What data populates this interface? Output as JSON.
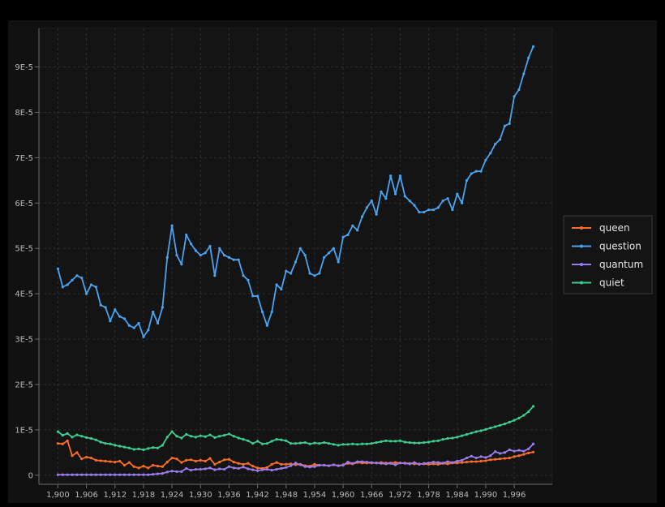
{
  "chart_data": {
    "type": "line",
    "title": "",
    "xlabel": "",
    "ylabel": "",
    "x_start": 1900,
    "x_end": 2000,
    "xlim": [
      1896,
      2004
    ],
    "ylim": [
      -2e-06,
      9.85e-05
    ],
    "x_ticks": [
      1900,
      1906,
      1912,
      1918,
      1924,
      1930,
      1936,
      1942,
      1948,
      1954,
      1960,
      1966,
      1972,
      1978,
      1984,
      1990,
      1996
    ],
    "x_tick_labels": [
      "1,900",
      "1,906",
      "1,912",
      "1,918",
      "1,924",
      "1,930",
      "1,936",
      "1,942",
      "1,948",
      "1,954",
      "1,960",
      "1,966",
      "1,972",
      "1,978",
      "1,984",
      "1,990",
      "1,996"
    ],
    "y_ticks": [
      0,
      1e-05,
      2e-05,
      3e-05,
      4e-05,
      5e-05,
      6e-05,
      7e-05,
      8e-05,
      9e-05
    ],
    "y_tick_labels": [
      "0",
      "1E-5",
      "2E-5",
      "3E-5",
      "4E-5",
      "5E-5",
      "6E-5",
      "7E-5",
      "8E-5",
      "9E-5"
    ],
    "grid": true,
    "legend_position": "right",
    "background": "#111111",
    "series": [
      {
        "name": "queen",
        "color": "#fc6d26",
        "values": [
          7.0,
          6.9,
          7.6,
          4.3,
          5.0,
          3.6,
          4.0,
          3.8,
          3.3,
          3.2,
          3.1,
          3.0,
          2.9,
          3.1,
          2.2,
          2.8,
          1.9,
          1.6,
          2.0,
          1.6,
          2.2,
          2.0,
          1.9,
          2.9,
          3.8,
          3.6,
          2.8,
          3.3,
          3.4,
          3.1,
          3.3,
          3.1,
          3.7,
          2.4,
          2.9,
          3.4,
          3.5,
          2.9,
          2.6,
          2.4,
          2.6,
          2.0,
          1.6,
          1.5,
          1.7,
          2.4,
          2.8,
          2.4,
          2.4,
          2.5,
          2.3,
          2.4,
          2.1,
          2.0,
          2.4,
          2.2,
          2.2,
          2.1,
          2.3,
          2.1,
          2.3,
          2.6,
          2.5,
          2.8,
          2.7,
          2.7,
          2.7,
          2.7,
          2.8,
          2.7,
          2.7,
          2.8,
          2.7,
          2.7,
          2.6,
          2.5,
          2.5,
          2.5,
          2.4,
          2.5,
          2.4,
          2.6,
          2.5,
          2.7,
          2.7,
          2.8,
          2.9,
          3.0,
          3.0,
          3.1,
          3.2,
          3.4,
          3.5,
          3.6,
          3.7,
          3.8,
          4.1,
          4.3,
          4.6,
          4.9,
          5.1
        ]
      },
      {
        "name": "question",
        "color": "#4aa3f0",
        "values": [
          45.5,
          41.5,
          42.0,
          43.0,
          44.0,
          43.5,
          40.0,
          42.0,
          41.5,
          37.5,
          37.0,
          34.0,
          36.5,
          35.0,
          34.5,
          33.0,
          32.5,
          33.5,
          30.5,
          32.0,
          36.0,
          33.5,
          37.0,
          48.0,
          55.0,
          48.5,
          46.5,
          53.0,
          51.0,
          49.5,
          48.5,
          49.0,
          50.5,
          44.0,
          50.0,
          48.5,
          48.0,
          47.5,
          47.5,
          44.0,
          43.0,
          39.5,
          39.5,
          36.0,
          33.0,
          36.0,
          42.0,
          41.0,
          45.0,
          44.5,
          47.0,
          50.0,
          48.5,
          44.5,
          44.0,
          44.5,
          48.0,
          49.0,
          50.0,
          47.0,
          52.5,
          53.0,
          55.0,
          54.0,
          57.0,
          59.0,
          60.5,
          57.5,
          62.5,
          61.0,
          66.0,
          62.0,
          66.0,
          61.5,
          60.5,
          59.5,
          58.0,
          58.0,
          58.5,
          58.5,
          59.0,
          60.5,
          61.0,
          58.5,
          62.0,
          60.0,
          65.0,
          66.5,
          67.0,
          67.0,
          69.5,
          71.0,
          73.0,
          74.0,
          77.0,
          77.5,
          83.5,
          85.0,
          88.5,
          92.0,
          94.5
        ]
      },
      {
        "name": "quantum",
        "color": "#9b7cf0",
        "values": [
          0.1,
          0.1,
          0.1,
          0.1,
          0.1,
          0.1,
          0.1,
          0.1,
          0.1,
          0.1,
          0.1,
          0.1,
          0.1,
          0.1,
          0.1,
          0.1,
          0.1,
          0.1,
          0.1,
          0.1,
          0.2,
          0.3,
          0.4,
          0.7,
          0.9,
          0.8,
          0.8,
          1.5,
          1.1,
          1.3,
          1.3,
          1.4,
          1.6,
          1.2,
          1.4,
          1.3,
          1.9,
          1.6,
          1.5,
          1.8,
          1.4,
          1.2,
          1.0,
          1.2,
          1.3,
          1.1,
          1.3,
          1.5,
          1.7,
          2.1,
          2.7,
          2.3,
          1.9,
          1.8,
          1.9,
          2.2,
          2.2,
          2.1,
          2.3,
          2.1,
          2.2,
          2.9,
          2.6,
          3.0,
          3.0,
          2.9,
          2.8,
          2.7,
          2.6,
          2.5,
          2.6,
          2.3,
          2.7,
          2.6,
          2.5,
          2.8,
          2.4,
          2.6,
          2.7,
          2.9,
          2.8,
          2.7,
          3.0,
          2.8,
          3.1,
          3.3,
          3.8,
          4.2,
          3.8,
          4.1,
          3.9,
          4.3,
          5.2,
          4.8,
          5.0,
          5.6,
          5.3,
          5.5,
          5.3,
          5.8,
          6.9
        ]
      },
      {
        "name": "quiet",
        "color": "#3dcc91",
        "values": [
          9.6,
          8.8,
          9.2,
          8.4,
          8.9,
          8.6,
          8.3,
          8.1,
          7.8,
          7.3,
          7.0,
          6.9,
          6.6,
          6.4,
          6.2,
          6.0,
          5.7,
          5.8,
          5.6,
          5.9,
          6.1,
          6.0,
          6.6,
          8.4,
          9.6,
          8.6,
          8.2,
          9.0,
          8.6,
          8.4,
          8.7,
          8.5,
          8.9,
          8.3,
          8.6,
          8.8,
          9.1,
          8.6,
          8.2,
          7.9,
          7.6,
          7.0,
          7.5,
          6.9,
          7.0,
          7.5,
          7.9,
          7.8,
          7.6,
          7.0,
          7.0,
          7.1,
          7.2,
          6.9,
          7.1,
          7.0,
          7.2,
          7.0,
          6.8,
          6.6,
          6.8,
          6.8,
          6.9,
          6.8,
          6.9,
          6.9,
          7.0,
          7.2,
          7.4,
          7.6,
          7.5,
          7.5,
          7.6,
          7.3,
          7.2,
          7.1,
          7.1,
          7.2,
          7.3,
          7.5,
          7.6,
          7.9,
          8.1,
          8.2,
          8.4,
          8.7,
          9.0,
          9.3,
          9.6,
          9.8,
          10.1,
          10.4,
          10.7,
          11.0,
          11.3,
          11.7,
          12.1,
          12.6,
          13.2,
          14.0,
          15.2
        ]
      }
    ]
  }
}
